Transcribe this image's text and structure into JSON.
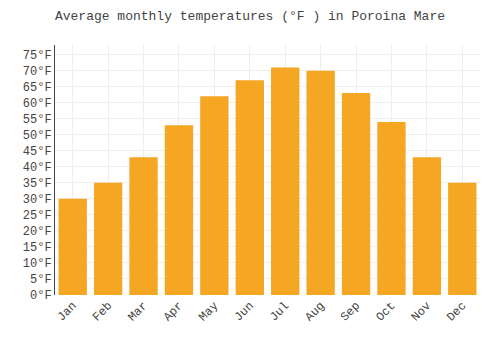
{
  "chart_data": {
    "type": "bar",
    "title": "Average monthly temperatures (°F ) in Poroina Mare",
    "categories": [
      "Jan",
      "Feb",
      "Mar",
      "Apr",
      "May",
      "Jun",
      "Jul",
      "Aug",
      "Sep",
      "Oct",
      "Nov",
      "Dec"
    ],
    "values": [
      30,
      35,
      43,
      53,
      62,
      67,
      71,
      70,
      63,
      54,
      43,
      35
    ],
    "color": "#F5A623",
    "ylim": [
      0,
      78
    ],
    "yticks": [
      {
        "value": 0,
        "label": "0°F"
      },
      {
        "value": 5,
        "label": "5°F"
      },
      {
        "value": 10,
        "label": "10°F"
      },
      {
        "value": 15,
        "label": "15°F"
      },
      {
        "value": 20,
        "label": "20°F"
      },
      {
        "value": 25,
        "label": "25°F"
      },
      {
        "value": 30,
        "label": "30°F"
      },
      {
        "value": 35,
        "label": "35°F"
      },
      {
        "value": 40,
        "label": "40°F"
      },
      {
        "value": 45,
        "label": "45°F"
      },
      {
        "value": 50,
        "label": "50°F"
      },
      {
        "value": 55,
        "label": "55°F"
      },
      {
        "value": 60,
        "label": "60°F"
      },
      {
        "value": 65,
        "label": "65°F"
      },
      {
        "value": 70,
        "label": "70°F"
      },
      {
        "value": 75,
        "label": "75°F"
      }
    ],
    "grid": true
  }
}
